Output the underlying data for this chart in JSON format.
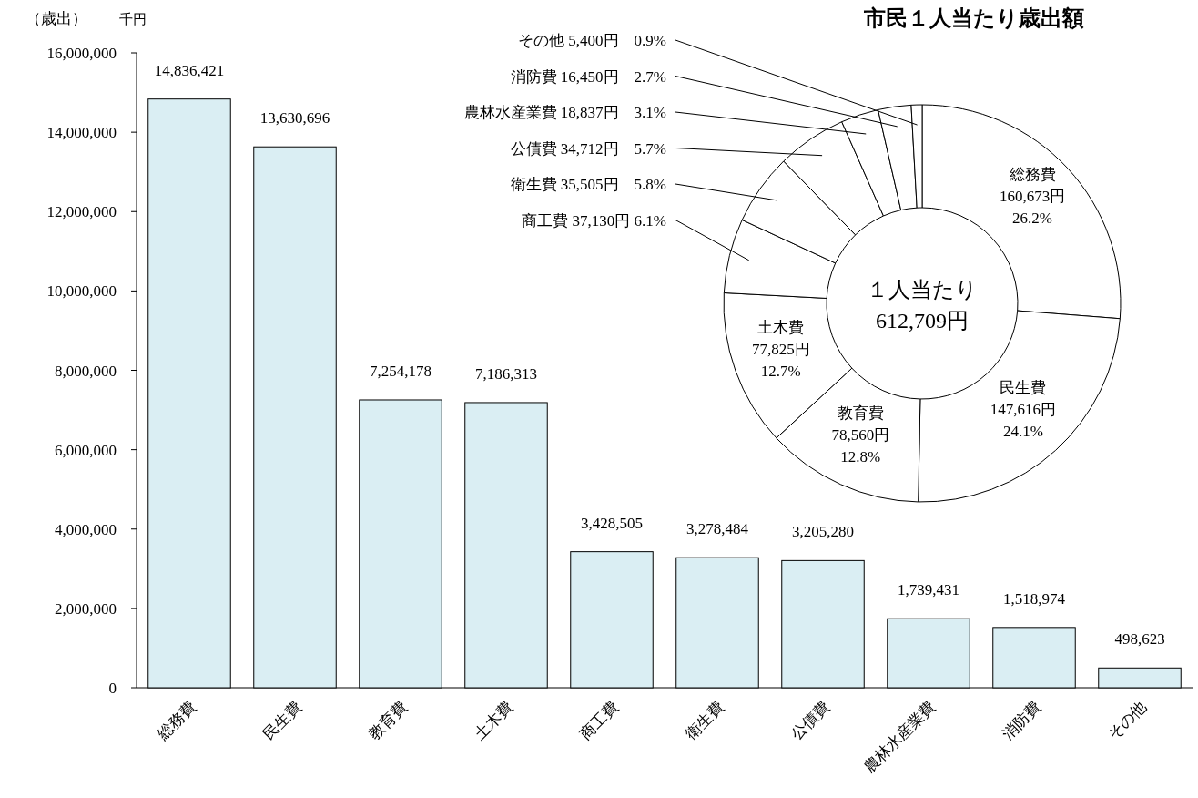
{
  "chart_data": [
    {
      "type": "bar",
      "ylabel": "（歳出）",
      "annotations": [
        "千円"
      ],
      "categories": [
        "総務費",
        "民生費",
        "教育費",
        "土木費",
        "商工費",
        "衛生費",
        "公債費",
        "農林水産業費",
        "消防費",
        "その他"
      ],
      "values": [
        14836421,
        13630696,
        7254178,
        7186313,
        3428505,
        3278484,
        3205280,
        1739431,
        1518974,
        498623
      ],
      "color": "#daeef3",
      "value_labels": [
        "14,836,421",
        "13,630,696",
        "7,254,178",
        "7,186,313",
        "3,428,505",
        "3,278,484",
        "3,205,280",
        "1,739,431",
        "1,518,974",
        "498,623"
      ],
      "ylim": [
        0,
        16000000
      ],
      "yticks": [
        0,
        {
          "value": 2000000,
          "label": "2,000,000"
        },
        {
          "value": 4000000,
          "label": "4,000,000"
        },
        {
          "value": 6000000,
          "label": "6,000,000"
        },
        {
          "value": 8000000,
          "label": "8,000,000"
        },
        {
          "value": 10000000,
          "label": "10,000,000"
        },
        {
          "value": 12000000,
          "label": "12,000,000"
        },
        {
          "value": 14000000,
          "label": "14,000,000"
        },
        {
          "value": 16000000,
          "label": "16,000,000"
        }
      ]
    },
    {
      "type": "donut",
      "title": "市民１人当たり歳出額",
      "annotations": [
        "１人当たり",
        "612,709円"
      ],
      "categories": [
        "総務費",
        "民生費",
        "教育費",
        "土木費",
        "商工費",
        "衛生費",
        "公債費",
        "農林水産業費",
        "消防費",
        "その他"
      ],
      "values": [
        160673,
        147616,
        78560,
        77825,
        37130,
        35505,
        34712,
        18837,
        16450,
        5400
      ],
      "value_labels": [
        "160,673円\n26.2%",
        "147,616円\n24.1%",
        "78,560円\n12.8%",
        "77,825円\n12.7%",
        "37,130円 6.1%",
        "35,505円　5.8%",
        "34,712円　5.7%",
        "18,837円　3.1%",
        "16,450円　2.7%",
        "5,400円　0.9%"
      ],
      "colors": [
        "#ffffff",
        "#ffffff",
        "#ffffff",
        "#ffffff",
        "#ffffff",
        "#ffffff",
        "#ffffff",
        "#ffffff",
        "#ffffff",
        "#ffffff"
      ]
    }
  ]
}
